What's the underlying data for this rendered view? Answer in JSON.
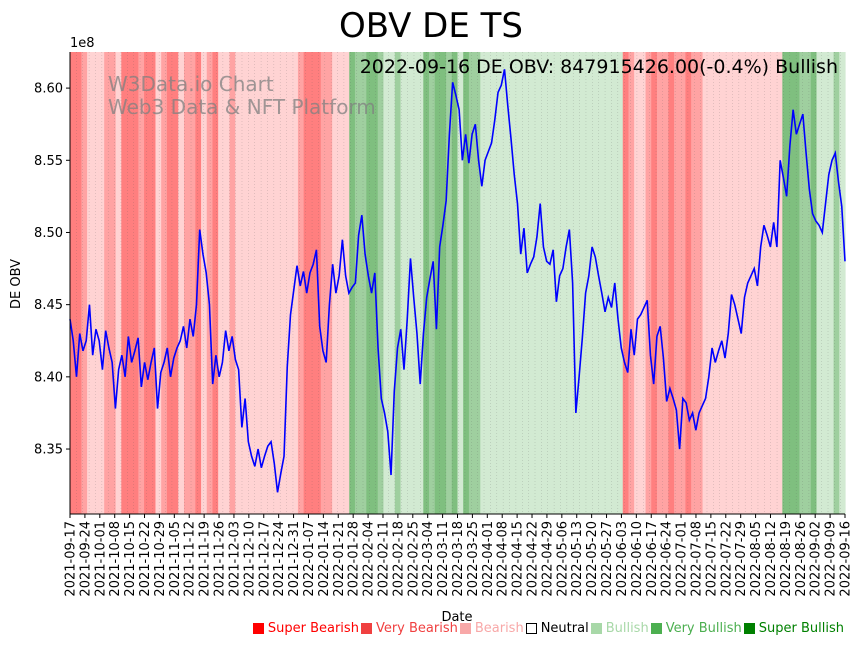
{
  "chart_data": {
    "type": "line",
    "title": "OBV DE TS",
    "xlabel": "Date",
    "ylabel": "DE OBV",
    "y_offset_label": "1e8",
    "annotation": "2022-09-16 DE OBV: 847915426.00(-0.4%) Bullish",
    "watermark": [
      "W3Data.io Chart",
      "Web3 Data & NFT Platform"
    ],
    "ylim": [
      8.305,
      8.625
    ],
    "yticks": [
      8.35,
      8.4,
      8.45,
      8.5,
      8.55,
      8.6
    ],
    "ytick_labels": [
      "8.35",
      "8.40",
      "8.45",
      "8.50",
      "8.55",
      "8.60"
    ],
    "date_range": [
      "2021-09-17",
      "2022-09-16"
    ],
    "xtick_labels": [
      "2021-09-17",
      "2021-09-24",
      "2021-10-01",
      "2021-10-08",
      "2021-10-15",
      "2021-10-22",
      "2021-10-29",
      "2021-11-05",
      "2021-11-12",
      "2021-11-19",
      "2021-11-26",
      "2021-12-03",
      "2021-12-10",
      "2021-12-17",
      "2021-12-24",
      "2021-12-31",
      "2022-01-07",
      "2022-01-14",
      "2022-01-21",
      "2022-01-28",
      "2022-02-04",
      "2022-02-11",
      "2022-02-18",
      "2022-02-25",
      "2022-03-04",
      "2022-03-11",
      "2022-03-18",
      "2022-03-25",
      "2022-04-01",
      "2022-04-08",
      "2022-04-15",
      "2022-04-22",
      "2022-04-29",
      "2022-05-06",
      "2022-05-13",
      "2022-05-20",
      "2022-05-27",
      "2022-06-03",
      "2022-06-10",
      "2022-06-17",
      "2022-06-24",
      "2022-07-01",
      "2022-07-08",
      "2022-07-15",
      "2022-07-22",
      "2022-07-29",
      "2022-08-05",
      "2022-08-12",
      "2022-08-19",
      "2022-08-26",
      "2022-09-02",
      "2022-09-09",
      "2022-09-16"
    ],
    "series": [
      {
        "name": "DE OBV",
        "color": "#0000ff",
        "values": [
          8.44,
          8.425,
          8.4,
          8.43,
          8.418,
          8.425,
          8.45,
          8.415,
          8.433,
          8.425,
          8.405,
          8.432,
          8.42,
          8.41,
          8.378,
          8.405,
          8.415,
          8.4,
          8.428,
          8.41,
          8.418,
          8.427,
          8.393,
          8.41,
          8.398,
          8.41,
          8.42,
          8.378,
          8.403,
          8.41,
          8.42,
          8.4,
          8.413,
          8.42,
          8.425,
          8.435,
          8.42,
          8.44,
          8.428,
          8.45,
          8.502,
          8.485,
          8.472,
          8.45,
          8.395,
          8.415,
          8.4,
          8.41,
          8.432,
          8.418,
          8.428,
          8.412,
          8.405,
          8.365,
          8.385,
          8.355,
          8.345,
          8.338,
          8.35,
          8.337,
          8.345,
          8.352,
          8.355,
          8.34,
          8.32,
          8.333,
          8.345,
          8.407,
          8.443,
          8.46,
          8.477,
          8.463,
          8.473,
          8.458,
          8.472,
          8.478,
          8.488,
          8.435,
          8.418,
          8.41,
          8.45,
          8.478,
          8.458,
          8.47,
          8.495,
          8.47,
          8.458,
          8.462,
          8.465,
          8.498,
          8.512,
          8.485,
          8.47,
          8.458,
          8.472,
          8.42,
          8.385,
          8.375,
          8.362,
          8.332,
          8.39,
          8.42,
          8.433,
          8.405,
          8.44,
          8.482,
          8.455,
          8.43,
          8.395,
          8.43,
          8.455,
          8.468,
          8.48,
          8.433,
          8.49,
          8.505,
          8.522,
          8.568,
          8.604,
          8.595,
          8.585,
          8.55,
          8.568,
          8.548,
          8.568,
          8.575,
          8.55,
          8.532,
          8.55,
          8.556,
          8.562,
          8.578,
          8.597,
          8.602,
          8.613,
          8.588,
          8.565,
          8.54,
          8.52,
          8.485,
          8.503,
          8.472,
          8.478,
          8.483,
          8.497,
          8.52,
          8.49,
          8.48,
          8.478,
          8.488,
          8.452,
          8.47,
          8.475,
          8.49,
          8.502,
          8.465,
          8.375,
          8.4,
          8.427,
          8.458,
          8.47,
          8.49,
          8.483,
          8.47,
          8.458,
          8.445,
          8.455,
          8.448,
          8.465,
          8.44,
          8.42,
          8.41,
          8.403,
          8.433,
          8.415,
          8.44,
          8.443,
          8.448,
          8.453,
          8.415,
          8.395,
          8.428,
          8.435,
          8.413,
          8.383,
          8.392,
          8.385,
          8.377,
          8.35,
          8.385,
          8.382,
          8.37,
          8.375,
          8.363,
          8.375,
          8.38,
          8.385,
          8.4,
          8.42,
          8.41,
          8.418,
          8.425,
          8.413,
          8.43,
          8.457,
          8.45,
          8.44,
          8.43,
          8.455,
          8.465,
          8.47,
          8.475,
          8.463,
          8.49,
          8.505,
          8.498,
          8.49,
          8.507,
          8.49,
          8.55,
          8.538,
          8.525,
          8.56,
          8.585,
          8.568,
          8.575,
          8.582,
          8.555,
          8.53,
          8.513,
          8.508,
          8.505,
          8.5,
          8.52,
          8.54,
          8.55,
          8.555,
          8.535,
          8.518,
          8.48
        ]
      }
    ],
    "background_bands": {
      "sentiments": [
        "Super Bearish",
        "Very Bearish",
        "Bearish",
        "Bearish",
        "Very Bearish",
        "Bearish",
        "Super Bearish",
        "Very Bearish",
        "Super Bearish",
        "Bearish",
        "Very Bearish",
        "Super Bearish",
        "Bearish",
        "Very Bearish",
        "Super Bearish",
        "Bearish",
        "Very Bearish",
        "Super Bearish",
        "Bearish",
        "Very Bearish",
        "Bearish",
        "Bearish",
        "Very Bearish",
        "Super Bearish",
        "Very Bearish",
        "Bearish",
        "Super Bullish",
        "Very Bullish",
        "Super Bullish",
        "Very Bullish",
        "Bullish",
        "Very Bullish",
        "Bullish",
        "Bullish",
        "Super Bullish",
        "Very Bullish",
        "Super Bullish",
        "Very Bullish",
        "Super Bullish",
        "Bullish",
        "Super Bullish",
        "Very Bullish",
        "Bullish",
        "Bullish",
        "Bullish",
        "Bullish",
        "Super Bearish",
        "Very Bearish",
        "Bearish",
        "Very Bearish",
        "Super Bearish",
        "Very Bearish",
        "Super Bearish",
        "Very Bearish",
        "Super Bearish",
        "Very Bearish",
        "Bearish",
        "Bearish",
        "Bearish",
        "Bearish",
        "Super Bullish",
        "Very Bullish",
        "Super Bullish",
        "Bullish",
        "Very Bullish",
        "Bullish"
      ],
      "relative_widths": [
        2,
        1,
        2,
        1,
        2,
        1,
        3,
        1,
        2,
        1,
        1,
        2,
        1,
        2,
        1,
        1,
        1,
        1,
        2,
        1,
        2,
        9,
        1,
        3,
        2,
        3,
        1,
        2,
        2,
        1,
        2,
        1,
        2,
        2,
        1,
        1,
        2,
        1,
        1,
        1,
        1,
        2,
        1,
        1,
        6,
        17,
        1,
        1,
        2,
        1,
        1,
        2,
        1,
        2,
        1,
        2,
        1,
        2,
        10,
        1,
        3,
        2,
        1,
        3,
        1,
        1
      ]
    }
  },
  "legend": {
    "items": [
      {
        "label": "Super Bearish",
        "swatch": "#ff0000",
        "text_color": "#ff0000"
      },
      {
        "label": "Very Bearish",
        "swatch": "#f04040",
        "text_color": "#f04040"
      },
      {
        "label": "Bearish",
        "swatch": "#f8a8a8",
        "text_color": "#f8a8a8"
      },
      {
        "label": "Neutral",
        "swatch": "#ffffff",
        "text_color": "#000000"
      },
      {
        "label": "Bullish",
        "swatch": "#a8d8a8",
        "text_color": "#a8d8a8"
      },
      {
        "label": "Very Bullish",
        "swatch": "#4caf50",
        "text_color": "#4caf50"
      },
      {
        "label": "Super Bullish",
        "swatch": "#008000",
        "text_color": "#008000"
      }
    ]
  },
  "colors": {
    "Super Bearish": "#ff7f7f",
    "Very Bearish": "#ffa3a3",
    "Bearish": "#ffd3d3",
    "Neutral": "#ffffff",
    "Bullish": "#d2ead2",
    "Very Bullish": "#9fcf9f",
    "Super Bullish": "#7fbf7f",
    "line": "#0000ff"
  }
}
